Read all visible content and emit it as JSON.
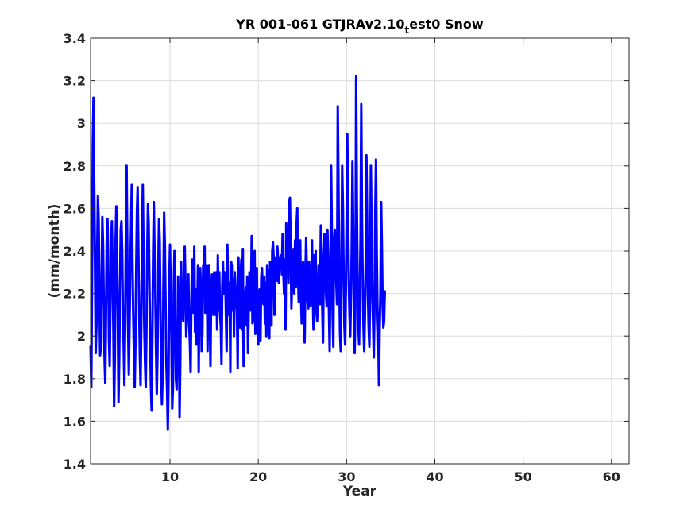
{
  "chart_data": {
    "type": "line",
    "title": {
      "main": "YR 001-061 GTJRAv2.10",
      "subscript": "t",
      "suffix": "est0 Snow"
    },
    "xlabel": "Year",
    "ylabel": "(mm/month)",
    "xlim": [
      1,
      62
    ],
    "ylim": [
      1.4,
      3.4
    ],
    "x_ticks": [
      10,
      20,
      30,
      40,
      50,
      60
    ],
    "y_ticks": [
      1.4,
      1.6,
      1.8,
      2,
      2.2,
      2.4,
      2.6,
      2.8,
      3,
      3.2,
      3.4
    ],
    "grid": true,
    "series": [
      {
        "color": "#0000ff",
        "x_start": 1,
        "x_step": 0.0833333,
        "values": [
          1.95,
          1.76,
          2.25,
          2.9,
          3.12,
          2.7,
          2.35,
          1.92,
          2.05,
          2.4,
          2.66,
          2.55,
          2.2,
          1.91,
          1.95,
          2.25,
          2.56,
          2.43,
          2.16,
          1.9,
          1.78,
          2.1,
          2.45,
          2.55,
          2.36,
          1.98,
          1.86,
          2.16,
          2.44,
          2.54,
          2.3,
          2.03,
          1.67,
          1.9,
          2.45,
          2.61,
          2.33,
          2.1,
          1.69,
          1.9,
          2.25,
          2.5,
          2.54,
          2.4,
          2.1,
          1.95,
          1.77,
          2.05,
          2.46,
          2.8,
          2.4,
          2.05,
          1.82,
          2.05,
          2.33,
          2.5,
          2.71,
          2.35,
          2.1,
          1.91,
          1.76,
          1.96,
          2.3,
          2.58,
          2.7,
          2.42,
          2.15,
          1.91,
          1.77,
          2.06,
          2.4,
          2.71,
          2.4,
          2.05,
          1.88,
          1.76,
          2.03,
          2.38,
          2.62,
          2.53,
          2.27,
          1.99,
          1.77,
          1.65,
          1.98,
          2.38,
          2.63,
          2.4,
          2.2,
          1.94,
          1.73,
          1.91,
          2.31,
          2.55,
          2.45,
          2.13,
          1.82,
          1.68,
          1.82,
          2.22,
          2.58,
          2.43,
          2.14,
          1.87,
          1.75,
          1.56,
          1.82,
          2.26,
          2.43,
          2.2,
          1.98,
          1.66,
          1.76,
          2.2,
          2.4,
          2.1,
          1.8,
          1.75,
          1.95,
          2.28,
          2.1,
          1.62,
          1.88,
          2.35,
          2.2,
          2.1,
          2.07,
          2.3,
          2.42,
          2.25,
          2.0,
          2.12,
          2.2,
          2.29,
          2.05,
          1.97,
          1.83,
          2.15,
          2.36,
          2.25,
          2.11,
          2.42,
          2.02,
          2.22,
          1.96,
          2.11,
          2.33,
          1.83,
          2.23,
          2.32,
          2.23,
          1.93,
          2.01,
          2.33,
          2.24,
          2.42,
          2.11,
          2.22,
          2.33,
          1.93,
          2.27,
          2.33,
          2.1,
          1.86,
          2.23,
          2.29,
          2.25,
          2.1,
          2.3,
          2.23,
          2.1,
          2.3,
          2.03,
          2.38,
          2.12,
          2.3,
          2.1,
          2.05,
          1.87,
          2.23,
          2.35,
          2.2,
          2.23,
          2.3,
          2.1,
          1.93,
          2.43,
          2.21,
          2.1,
          2.25,
          1.83,
          2.35,
          2.33,
          2.12,
          2.27,
          2.0,
          2.3,
          2.23,
          2.17,
          2.12,
          1.85,
          2.37,
          2.21,
          2.04,
          2.28,
          2.36,
          2.03,
          2.41,
          1.86,
          2.15,
          2.17,
          2.23,
          2.05,
          2.28,
          1.92,
          2.13,
          2.3,
          2.28,
          2.12,
          2.47,
          2.06,
          2.07,
          2.25,
          2.4,
          2.01,
          2.2,
          2.32,
          2.03,
          1.96,
          2.21,
          2.22,
          1.98,
          2.28,
          2.32,
          2.22,
          2.15,
          2.28,
          2.06,
          2.25,
          2.0,
          2.33,
          2.3,
          2.11,
          1.99,
          2.35,
          2.25,
          2.05,
          2.4,
          2.44,
          2.36,
          2.1,
          2.32,
          2.37,
          2.26,
          2.42,
          2.34,
          2.25,
          2.37,
          2.34,
          2.38,
          2.29,
          2.48,
          2.31,
          2.2,
          2.36,
          2.03,
          2.53,
          2.28,
          2.41,
          2.25,
          2.63,
          2.65,
          2.42,
          2.13,
          2.26,
          2.33,
          2.41,
          2.2,
          2.45,
          2.23,
          2.52,
          2.6,
          2.28,
          2.16,
          2.31,
          2.45,
          2.2,
          2.06,
          2.33,
          2.35,
          2.13,
          1.97,
          2.27,
          2.46,
          2.31,
          2.16,
          2.13,
          2.35,
          2.26,
          2.14,
          2.22,
          2.45,
          2.23,
          2.03,
          2.38,
          2.28,
          2.4,
          2.12,
          2.07,
          2.2,
          2.33,
          2.27,
          2.15,
          2.52,
          2.38,
          2.12,
          1.97,
          2.35,
          2.48,
          2.4,
          2.2,
          2.14,
          2.5,
          2.35,
          2.12,
          1.93,
          2.28,
          2.8,
          2.5,
          2.1,
          1.95,
          2.45,
          2.5,
          2.4,
          2.25,
          2.15,
          3.08,
          2.72,
          2.3,
          2.02,
          1.93,
          2.3,
          2.8,
          2.62,
          2.3,
          2.05,
          1.96,
          2.2,
          2.52,
          2.95,
          2.62,
          2.25,
          2.1,
          2.0,
          2.18,
          2.41,
          2.82,
          2.5,
          2.13,
          1.92,
          2.15,
          3.22,
          2.63,
          2.25,
          2.05,
          1.96,
          2.2,
          2.46,
          3.09,
          2.55,
          2.25,
          2.04,
          1.93,
          2.1,
          2.35,
          2.85,
          2.55,
          2.2,
          2.04,
          1.95,
          2.22,
          2.8,
          2.5,
          2.2,
          2.06,
          1.9,
          2.15,
          2.58,
          2.83,
          2.4,
          2.13,
          2.02,
          1.77,
          2.04,
          2.2,
          2.63,
          2.43,
          2.15,
          2.04,
          2.07,
          2.21
        ]
      }
    ]
  }
}
